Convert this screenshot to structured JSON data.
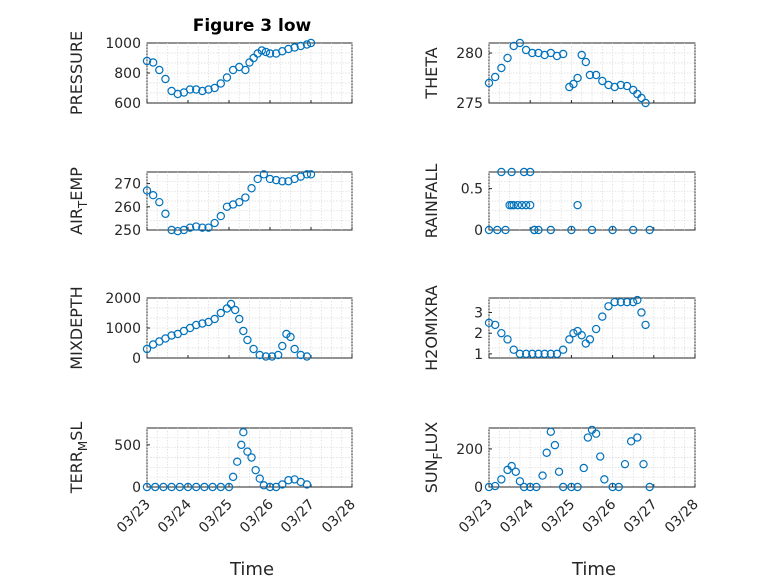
{
  "figure": {
    "title": "Figure 3 low",
    "xlabel": "Time"
  },
  "style": {
    "marker_color": "#0072BD",
    "marker": "circle"
  },
  "chart_data": [
    {
      "type": "scatter",
      "ylabel": "PRESSURE",
      "ylim": [
        600,
        1000
      ],
      "yticks": [
        "600",
        "800",
        "1000"
      ],
      "grid": "dotted minor",
      "x_days_start": "03/23",
      "x": [
        0.0,
        0.15,
        0.3,
        0.45,
        0.6,
        0.75,
        0.9,
        1.05,
        1.2,
        1.35,
        1.5,
        1.65,
        1.8,
        1.95,
        2.1,
        2.25,
        2.4,
        2.5,
        2.6,
        2.7,
        2.8,
        2.9,
        3.0,
        3.15,
        3.3,
        3.45,
        3.6,
        3.75,
        3.9,
        4.0
      ],
      "y": [
        880,
        870,
        820,
        760,
        680,
        660,
        670,
        690,
        690,
        680,
        690,
        700,
        730,
        770,
        820,
        840,
        820,
        870,
        900,
        930,
        950,
        940,
        930,
        930,
        945,
        960,
        970,
        980,
        990,
        1000
      ]
    },
    {
      "type": "scatter",
      "ylabel": "THETA",
      "ylim": [
        275,
        281
      ],
      "yticks": [
        "275",
        "280"
      ],
      "x": [
        0.0,
        0.15,
        0.3,
        0.45,
        0.6,
        0.75,
        0.9,
        1.05,
        1.2,
        1.35,
        1.5,
        1.65,
        1.8,
        1.95,
        2.05,
        2.15,
        2.25,
        2.35,
        2.45,
        2.6,
        2.75,
        2.9,
        3.05,
        3.2,
        3.35,
        3.5,
        3.6,
        3.7,
        3.8
      ],
      "y": [
        277,
        277.6,
        278.5,
        279.5,
        280.7,
        281,
        280.3,
        280,
        280,
        279.8,
        280,
        279.7,
        279.9,
        276.6,
        276.9,
        277.5,
        279.8,
        279.1,
        277.8,
        277.8,
        277.2,
        276.8,
        276.6,
        276.8,
        276.7,
        276.3,
        275.9,
        275.5,
        275
      ]
    },
    {
      "type": "scatter",
      "ylabel": "AIR",
      "ylabel_sub": "T",
      "ylabel_rest": "EMP",
      "ylim": [
        250,
        275
      ],
      "yticks": [
        "250",
        "260",
        "270"
      ],
      "x": [
        0.0,
        0.15,
        0.3,
        0.45,
        0.6,
        0.75,
        0.9,
        1.05,
        1.2,
        1.35,
        1.5,
        1.65,
        1.8,
        1.95,
        2.1,
        2.25,
        2.4,
        2.55,
        2.7,
        2.85,
        3.0,
        3.15,
        3.3,
        3.45,
        3.6,
        3.75,
        3.9,
        4.0
      ],
      "y": [
        267,
        265,
        262,
        257,
        250,
        249.5,
        250,
        251,
        251.5,
        251,
        251,
        253,
        256,
        260,
        261,
        262,
        264,
        268,
        272,
        274,
        272,
        271.5,
        271,
        271,
        272,
        273,
        274,
        274
      ]
    },
    {
      "type": "scatter",
      "ylabel": "RAINFALL",
      "ylim": [
        0,
        0.7
      ],
      "yticks": [
        "0",
        "0.5"
      ],
      "x": [
        0.0,
        0.2,
        0.4,
        0.5,
        0.55,
        0.6,
        0.7,
        0.8,
        0.9,
        1.0,
        1.1,
        1.2,
        0.3,
        0.55,
        0.85,
        1.0,
        2.15,
        1.1,
        1.5,
        2.0,
        2.5,
        3.0,
        3.5,
        3.9
      ],
      "y": [
        0,
        0,
        0,
        0.3,
        0.3,
        0.3,
        0.3,
        0.3,
        0.3,
        0.3,
        0,
        0,
        0.7,
        0.7,
        0.7,
        0.7,
        0.3,
        0,
        0,
        0,
        0,
        0,
        0,
        0
      ]
    },
    {
      "type": "scatter",
      "ylabel": "MIXDEPTH",
      "ylim": [
        0,
        2000
      ],
      "yticks": [
        "0",
        "1000",
        "2000"
      ],
      "x": [
        0.0,
        0.15,
        0.3,
        0.45,
        0.6,
        0.75,
        0.9,
        1.05,
        1.2,
        1.35,
        1.5,
        1.65,
        1.8,
        1.95,
        2.05,
        2.15,
        2.25,
        2.35,
        2.45,
        2.6,
        2.75,
        2.9,
        3.05,
        3.2,
        3.3,
        3.4,
        3.5,
        3.6,
        3.75,
        3.9
      ],
      "y": [
        300,
        450,
        550,
        650,
        750,
        800,
        900,
        1000,
        1100,
        1150,
        1200,
        1300,
        1500,
        1650,
        1800,
        1600,
        1300,
        900,
        600,
        300,
        100,
        50,
        50,
        100,
        400,
        800,
        700,
        300,
        100,
        50
      ]
    },
    {
      "type": "scatter",
      "ylabel": "H2OMIXRA",
      "ylim": [
        0.8,
        3.7
      ],
      "yticks": [
        "1",
        "2",
        "3"
      ],
      "x": [
        0.0,
        0.15,
        0.3,
        0.45,
        0.6,
        0.75,
        0.9,
        1.05,
        1.2,
        1.35,
        1.5,
        1.65,
        1.8,
        1.95,
        2.05,
        2.15,
        2.25,
        2.35,
        2.45,
        2.6,
        2.75,
        2.9,
        3.05,
        3.2,
        3.35,
        3.5,
        3.6,
        3.7,
        3.8
      ],
      "y": [
        2.5,
        2.4,
        2.0,
        1.7,
        1.2,
        1.0,
        1.0,
        1.0,
        1.0,
        1.0,
        1.0,
        1.0,
        1.2,
        1.7,
        2.0,
        2.1,
        1.9,
        1.5,
        1.7,
        2.2,
        2.8,
        3.3,
        3.5,
        3.5,
        3.5,
        3.5,
        3.6,
        3.0,
        2.4
      ]
    },
    {
      "type": "scatter",
      "ylabel": "TERR",
      "ylabel_sub": "M",
      "ylabel_rest": "SL",
      "ylim": [
        0,
        700
      ],
      "yticks": [
        "0",
        "500"
      ],
      "x": [
        0.0,
        0.2,
        0.4,
        0.6,
        0.8,
        1.0,
        1.2,
        1.4,
        1.6,
        1.8,
        2.0,
        2.1,
        2.2,
        2.3,
        2.35,
        2.45,
        2.55,
        2.65,
        2.75,
        2.85,
        3.0,
        3.15,
        3.3,
        3.45,
        3.6,
        3.75,
        3.9
      ],
      "y": [
        0,
        0,
        0,
        0,
        0,
        0,
        0,
        0,
        0,
        0,
        0,
        120,
        300,
        500,
        650,
        420,
        350,
        200,
        100,
        20,
        0,
        0,
        30,
        80,
        90,
        60,
        30
      ]
    },
    {
      "type": "scatter",
      "ylabel": "SUN",
      "ylabel_sub": "F",
      "ylabel_rest": "LUX",
      "ylim": [
        0,
        310
      ],
      "yticks": [
        "0",
        "200"
      ],
      "x": [
        0.0,
        0.15,
        0.3,
        0.45,
        0.55,
        0.65,
        0.75,
        0.85,
        1.0,
        1.15,
        1.3,
        1.4,
        1.5,
        1.6,
        1.7,
        1.8,
        2.0,
        2.15,
        2.3,
        2.4,
        2.5,
        2.6,
        2.7,
        2.8,
        3.0,
        3.15,
        3.3,
        3.45,
        3.6,
        3.75,
        3.9
      ],
      "y": [
        0,
        5,
        40,
        90,
        110,
        80,
        30,
        0,
        0,
        0,
        60,
        180,
        290,
        220,
        80,
        0,
        0,
        0,
        100,
        260,
        300,
        280,
        160,
        40,
        0,
        0,
        120,
        240,
        260,
        120,
        0
      ]
    }
  ],
  "x_axis": {
    "ticks": [
      "03/23",
      "03/24",
      "03/25",
      "03/26",
      "03/27",
      "03/28"
    ],
    "range_days": [
      0,
      5
    ]
  }
}
